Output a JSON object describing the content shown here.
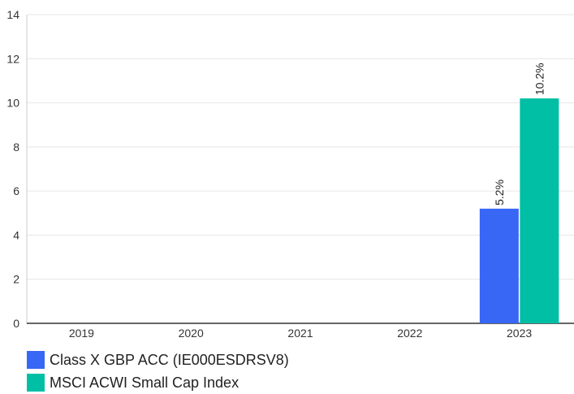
{
  "colors": {
    "class_x": "#3866f5",
    "msci": "#00bfa5",
    "grid": "#e6e6e6",
    "axis": "#333333",
    "text": "#333333"
  },
  "chart_data": {
    "type": "bar",
    "categories": [
      "2019",
      "2020",
      "2021",
      "2022",
      "2023"
    ],
    "series": [
      {
        "name": "Class X GBP ACC (IE000ESDRSV8)",
        "values": [
          null,
          null,
          null,
          null,
          5.2
        ],
        "labels": [
          "",
          "",
          "",
          "",
          "5.2%"
        ]
      },
      {
        "name": "MSCI ACWI Small Cap Index",
        "values": [
          null,
          null,
          null,
          null,
          10.2
        ],
        "labels": [
          "",
          "",
          "",
          "",
          "10.2%"
        ]
      }
    ],
    "yticks": [
      "0",
      "2",
      "4",
      "6",
      "8",
      "10",
      "12",
      "14"
    ],
    "ylim": [
      0,
      14
    ],
    "grid": true,
    "legend": "bottom-left"
  }
}
